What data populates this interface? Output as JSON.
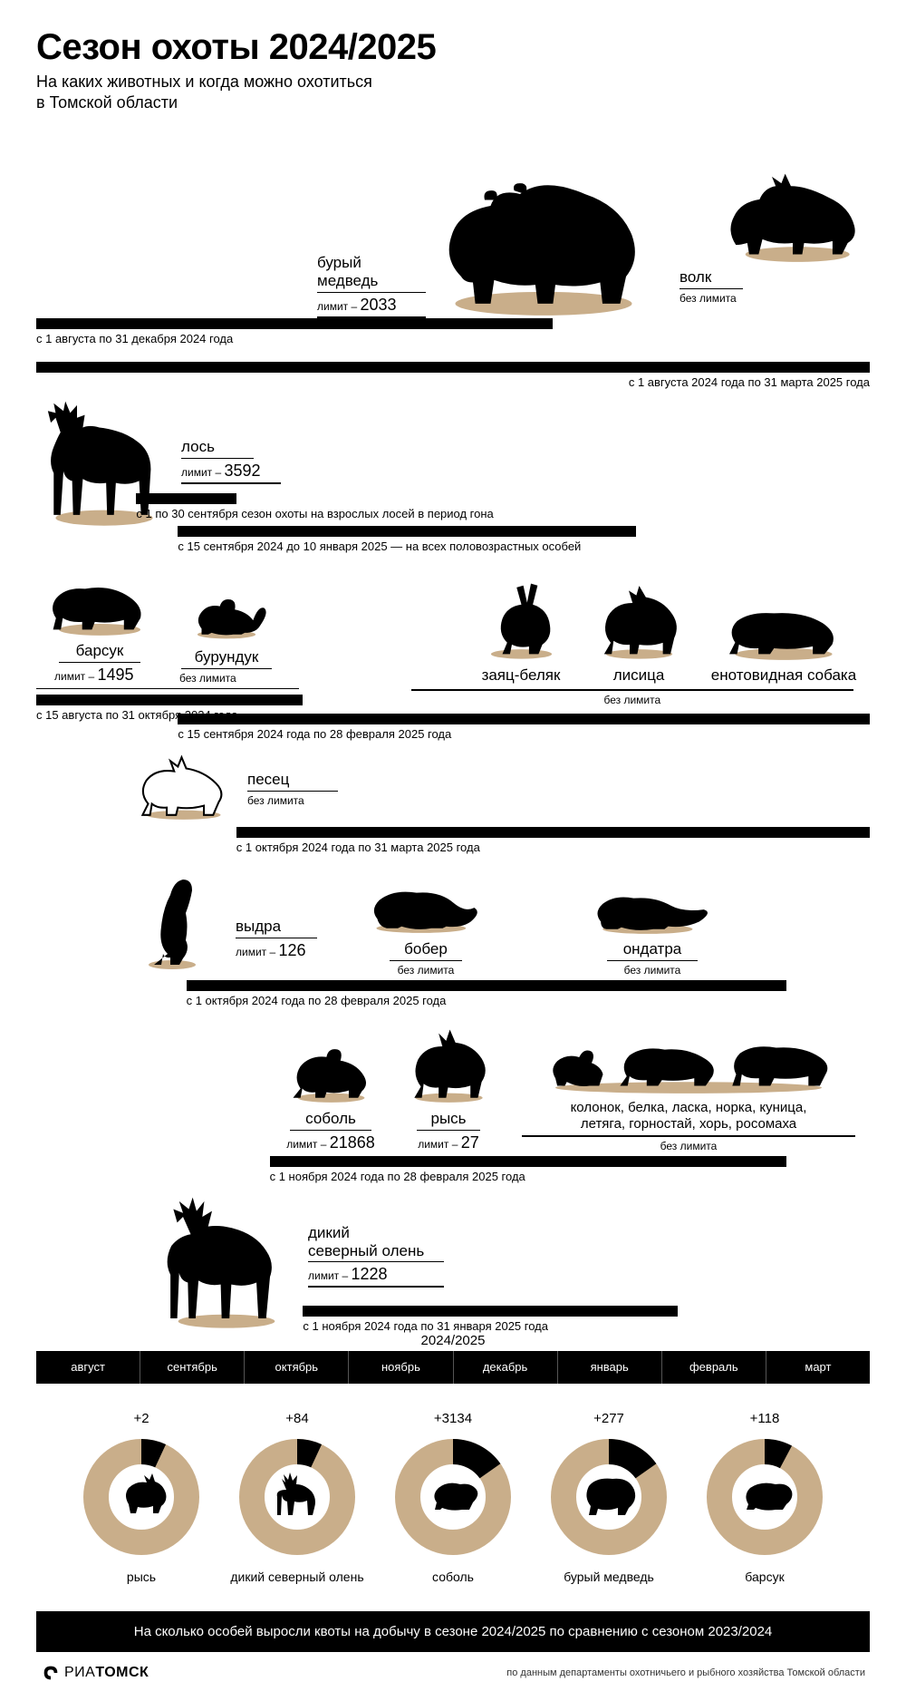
{
  "colors": {
    "shadow": "#c9ae8a",
    "black": "#000000",
    "white": "#ffffff",
    "donut_ring": "#c9ae8a",
    "donut_slice": "#000000"
  },
  "header": {
    "title": "Сезон охоты 2024/2025",
    "subtitle_l1": "На каких животных и когда можно охотиться",
    "subtitle_l2": "в Томской области"
  },
  "animals": {
    "bear": {
      "name": "бурый медведь",
      "limit_label": "лимит –",
      "limit_value": "2033",
      "period": "с 1 августа по 31 декабря 2024 года"
    },
    "wolf": {
      "name": "волк",
      "limit_text": "без лимита",
      "period": "с 1 августа 2024 года по 31 марта 2025 года"
    },
    "moose": {
      "name": "лось",
      "limit_label": "лимит –",
      "limit_value": "3592",
      "period1": "с 1 по 30 сентября сезон охоты на взрослых лосей в период гона",
      "period2": "с 15 сентября 2024 до 10 января 2025 — на всех половозрастных особей"
    },
    "badger": {
      "name": "барсук",
      "limit_label": "лимит –",
      "limit_value": "1495"
    },
    "chipmunk": {
      "name": "бурундук",
      "limit_text": "без лимита"
    },
    "badger_chipmunk_period": "с 15 августа по 31 октября 2024 года",
    "hare": {
      "name": "заяц-беляк"
    },
    "fox": {
      "name": "лисица"
    },
    "raccoon_dog": {
      "name": "енотовидная собака"
    },
    "hare_group_limit": "без лимита",
    "hare_group_period": "с 15 сентября 2024 года по 28 февраля 2025 года",
    "arctic_fox": {
      "name": "песец",
      "limit_text": "без лимита",
      "period": "с 1 октября 2024 года по 31 марта 2025 года"
    },
    "otter": {
      "name": "выдра",
      "limit_label": "лимит –",
      "limit_value": "126"
    },
    "beaver": {
      "name": "бобер",
      "limit_text": "без лимита"
    },
    "muskrat": {
      "name": "ондатра",
      "limit_text": "без лимита"
    },
    "otter_group_period": "с 1 октября 2024 года по 28 февраля 2025 года",
    "sable": {
      "name": "соболь",
      "limit_label": "лимит –",
      "limit_value": "21868"
    },
    "lynx": {
      "name": "рысь",
      "limit_label": "лимит –",
      "limit_value": "27"
    },
    "mustelids": {
      "name_l1": "колонок, белка, ласка, норка, куница,",
      "name_l2": "летяга, горностай, хорь, росомаха",
      "limit_text": "без лимита"
    },
    "sable_group_period": "с 1 ноября 2024 года по 28 февраля 2025 года",
    "reindeer": {
      "name_l1": "дикий",
      "name_l2": "северный олень",
      "limit_label": "лимит –",
      "limit_value": "1228",
      "period": "с 1 ноября 2024 года по 31 января 2025 года"
    }
  },
  "months_year_label": "2024/2025",
  "months": [
    "август",
    "сентябрь",
    "октябрь",
    "ноябрь",
    "декабрь",
    "январь",
    "февраль",
    "март"
  ],
  "donuts": [
    {
      "delta": "+2",
      "label": "рысь",
      "slice_deg": 25
    },
    {
      "delta": "+84",
      "label": "дикий северный олень",
      "slice_deg": 25
    },
    {
      "delta": "+3134",
      "label": "соболь",
      "slice_deg": 55
    },
    {
      "delta": "+277",
      "label": "бурый медведь",
      "slice_deg": 55
    },
    {
      "delta": "+118",
      "label": "барсук",
      "slice_deg": 28
    }
  ],
  "footer_band": "На сколько особей выросли квоты на добычу в сезоне 2024/2025 по сравнению с сезоном 2023/2024",
  "logo": {
    "ria": "РИА",
    "tomsk": "ТОМСК"
  },
  "source_note": "по данным департаменты охотничьего и рыбного хозяйства Томской области"
}
